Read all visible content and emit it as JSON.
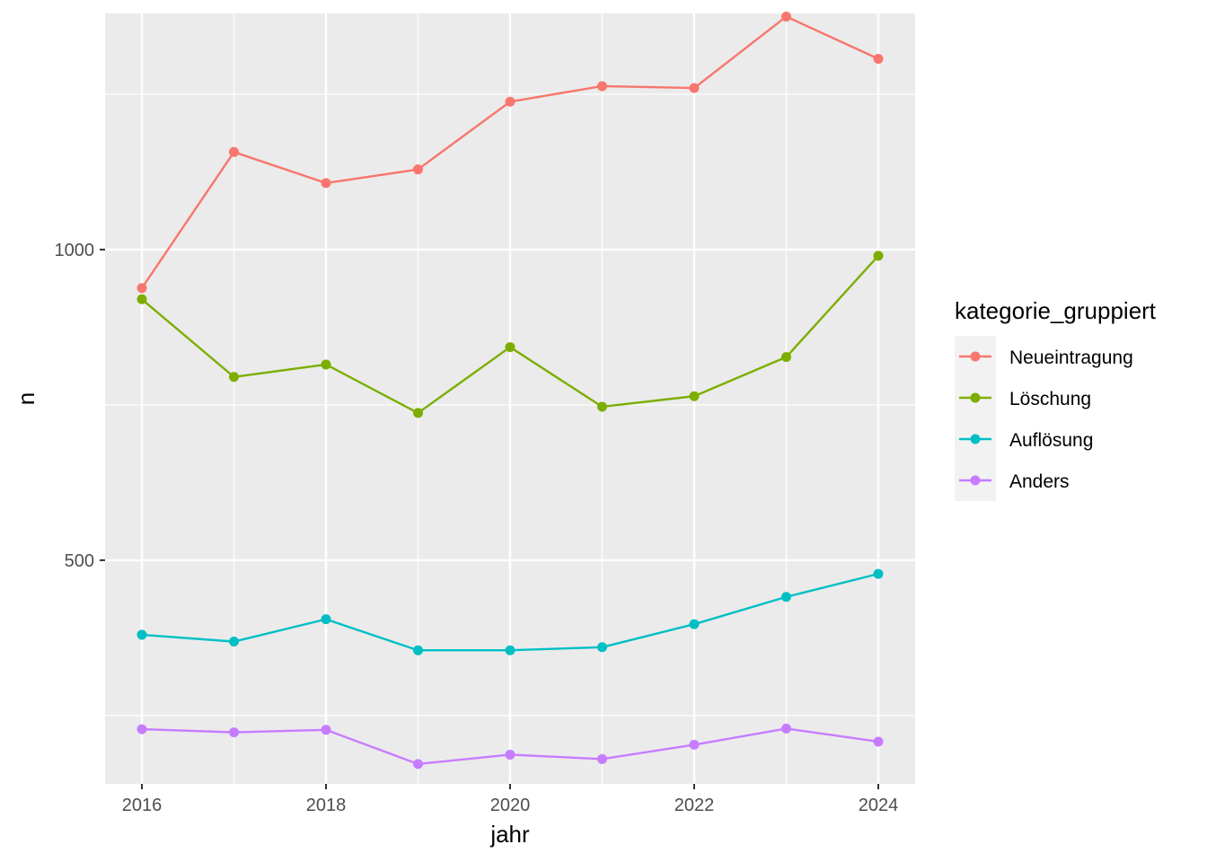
{
  "chart_data": {
    "type": "line",
    "xlabel": "jahr",
    "ylabel": "n",
    "x": [
      2016,
      2017,
      2018,
      2019,
      2020,
      2021,
      2022,
      2023,
      2024
    ],
    "xlim": [
      2016,
      2024
    ],
    "ylim": [
      140,
      1380
    ],
    "x_ticks": [
      2016,
      2018,
      2020,
      2022,
      2024
    ],
    "y_ticks": [
      500,
      1000
    ],
    "grid": true,
    "legend": {
      "title": "kategorie_gruppiert",
      "placement": "right"
    },
    "series": [
      {
        "name": "Neueintragung",
        "color": "#F8766D",
        "values": [
          938,
          1157,
          1107,
          1129,
          1238,
          1263,
          1260,
          1375,
          1307
        ]
      },
      {
        "name": "Löschung",
        "color": "#7CAE00",
        "values": [
          920,
          795,
          815,
          737,
          843,
          747,
          764,
          827,
          990
        ]
      },
      {
        "name": "Auflösung",
        "color": "#00BFC4",
        "values": [
          380,
          369,
          405,
          355,
          355,
          360,
          397,
          441,
          478
        ]
      },
      {
        "name": "Anders",
        "color": "#C77CFF",
        "values": [
          228,
          223,
          227,
          172,
          187,
          180,
          203,
          229,
          208
        ]
      }
    ]
  }
}
